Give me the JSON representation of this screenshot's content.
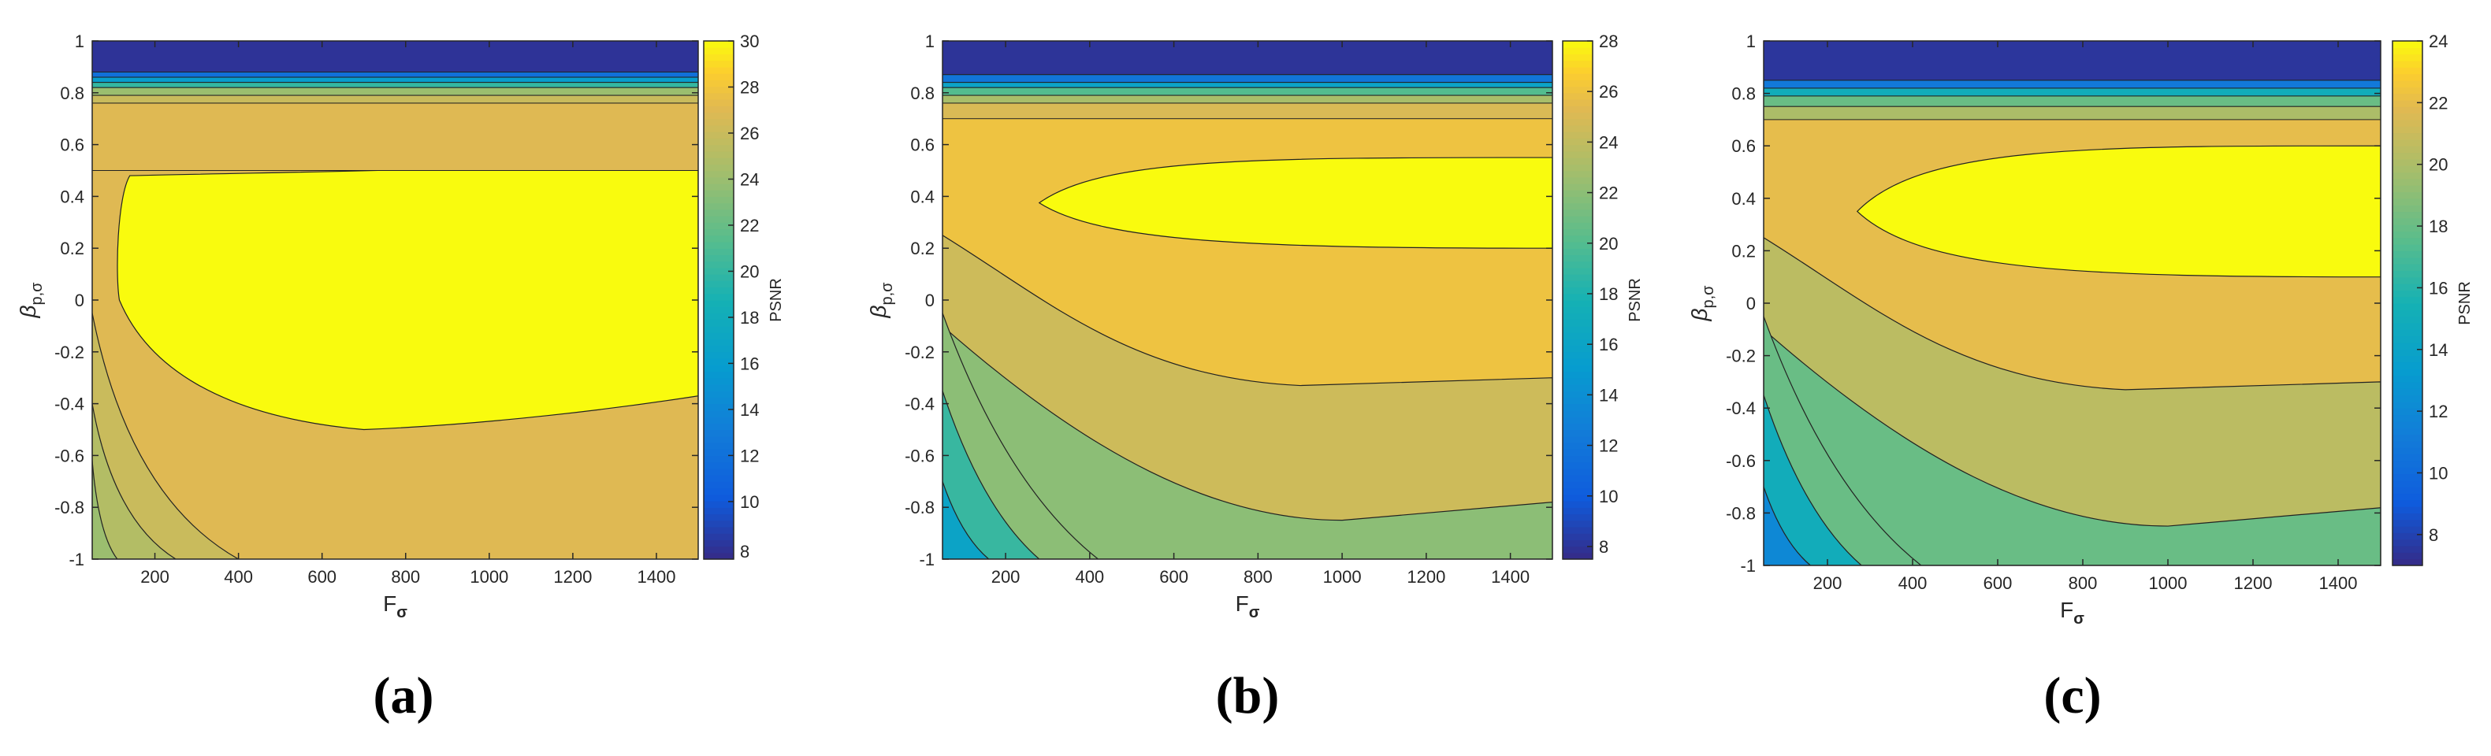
{
  "chart_data": [
    {
      "type": "heatmap",
      "subtype": "filled-contour",
      "panel_label": "(a)",
      "panel_letter": "a",
      "xlabel_main": "F",
      "xlabel_sub": "σ",
      "ylabel_main": "β",
      "ylabel_sub": "p,σ",
      "xlim": [
        50,
        1500
      ],
      "ylim": [
        -1,
        1
      ],
      "xticks": [
        200,
        400,
        600,
        800,
        1000,
        1200,
        1400
      ],
      "yticks": [
        -1,
        -0.8,
        -0.6,
        -0.4,
        -0.2,
        0,
        0.2,
        0.4,
        0.6,
        0.8,
        1
      ],
      "colorbar": {
        "label": "PSNR",
        "range": [
          7.5,
          30
        ],
        "ticks": [
          10,
          12,
          14,
          16,
          18,
          20,
          22,
          24,
          26,
          28,
          30
        ],
        "tick_labels": [
          "10",
          "12",
          "14",
          "16",
          "18",
          "20",
          "22",
          "24",
          "26",
          "28",
          "30"
        ],
        "bottom_label": "8",
        "colormap": "parula",
        "position": "right"
      },
      "peak_region": {
        "psnr": 30,
        "x_from": 110,
        "x_to": 1500,
        "y_from": -0.5,
        "y_to": 0.5
      },
      "bands_top": [
        {
          "psnr": 8,
          "y_from": 0.88,
          "y_to": 1.0
        },
        {
          "psnr": 12,
          "y_from": 0.86,
          "y_to": 0.88
        },
        {
          "psnr": 16,
          "y_from": 0.84,
          "y_to": 0.86
        },
        {
          "psnr": 20,
          "y_from": 0.82,
          "y_to": 0.84
        },
        {
          "psnr": 24,
          "y_from": 0.79,
          "y_to": 0.82
        },
        {
          "psnr": 26,
          "y_from": 0.76,
          "y_to": 0.79
        },
        {
          "psnr": 27,
          "y_from": 0.5,
          "y_to": 0.76
        }
      ],
      "bands_lower_left": [
        {
          "psnr": 24,
          "corner": "bottom-left",
          "extent_x": 110,
          "extent_y": -0.62
        },
        {
          "psnr": 25,
          "corner": "bottom-left",
          "extent_x": 250,
          "extent_y": -0.4
        },
        {
          "psnr": 26,
          "corner": "bottom-left",
          "extent_x": 400,
          "extent_y": -0.05
        }
      ],
      "background_psnr": 27,
      "contour_lines": [
        {
          "level": 29,
          "x": [
            140,
            120,
            110,
            115,
            160,
            250,
            400,
            700,
            1000,
            1300,
            1500
          ],
          "y": [
            0.48,
            0.45,
            0.25,
            0.0,
            -0.15,
            -0.3,
            -0.45,
            -0.5,
            -0.47,
            -0.42,
            -0.37
          ]
        },
        {
          "level": 29,
          "x": [
            140,
            400,
            700,
            1000,
            1300,
            1500
          ],
          "y": [
            0.48,
            0.49,
            0.5,
            0.5,
            0.52,
            0.56
          ]
        }
      ]
    },
    {
      "type": "heatmap",
      "subtype": "filled-contour",
      "panel_label": "(b)",
      "panel_letter": "b",
      "xlabel_main": "F",
      "xlabel_sub": "σ",
      "ylabel_main": "β",
      "ylabel_sub": "p,σ",
      "xlim": [
        50,
        1500
      ],
      "ylim": [
        -1,
        1
      ],
      "xticks": [
        200,
        400,
        600,
        800,
        1000,
        1200,
        1400
      ],
      "yticks": [
        -1,
        -0.8,
        -0.6,
        -0.4,
        -0.2,
        0,
        0.2,
        0.4,
        0.6,
        0.8,
        1
      ],
      "colorbar": {
        "label": "PSNR",
        "range": [
          7.5,
          28
        ],
        "ticks": [
          8,
          10,
          12,
          14,
          16,
          18,
          20,
          22,
          24,
          26,
          28
        ],
        "tick_labels": [
          "8",
          "10",
          "12",
          "14",
          "16",
          "18",
          "20",
          "22",
          "24",
          "26",
          "28"
        ],
        "colormap": "parula",
        "position": "right"
      },
      "peak_region": {
        "psnr": 28,
        "x_from": 280,
        "x_to": 1500,
        "y_from": 0.2,
        "y_to": 0.55
      },
      "bands_top": [
        {
          "psnr": 8,
          "y_from": 0.87,
          "y_to": 1.0
        },
        {
          "psnr": 12,
          "y_from": 0.84,
          "y_to": 0.87
        },
        {
          "psnr": 16,
          "y_from": 0.82,
          "y_to": 0.84
        },
        {
          "psnr": 20,
          "y_from": 0.79,
          "y_to": 0.82
        },
        {
          "psnr": 23,
          "y_from": 0.76,
          "y_to": 0.79
        },
        {
          "psnr": 25,
          "y_from": 0.7,
          "y_to": 0.76
        }
      ],
      "background_psnr": 26
    },
    {
      "type": "heatmap",
      "subtype": "filled-contour",
      "panel_label": "(c)",
      "panel_letter": "c",
      "xlabel_main": "F",
      "xlabel_sub": "σ",
      "ylabel_main": "β",
      "ylabel_sub": "p,σ",
      "xlim": [
        50,
        1500
      ],
      "ylim": [
        -1,
        1
      ],
      "xticks": [
        200,
        400,
        600,
        800,
        1000,
        1200,
        1400
      ],
      "yticks": [
        -1,
        -0.8,
        -0.6,
        -0.4,
        -0.2,
        0,
        0.2,
        0.4,
        0.6,
        0.8,
        1
      ],
      "colorbar": {
        "label": "PSNR",
        "range": [
          7,
          24
        ],
        "ticks": [
          8,
          10,
          12,
          14,
          16,
          18,
          20,
          22,
          24
        ],
        "tick_labels": [
          "8",
          "10",
          "12",
          "14",
          "16",
          "18",
          "20",
          "22",
          "24"
        ],
        "colormap": "parula",
        "position": "right"
      },
      "peak_region": {
        "psnr": 24,
        "x_from": 270,
        "x_to": 1500,
        "y_from": 0.1,
        "y_to": 0.6
      },
      "bands_top": [
        {
          "psnr": 7.5,
          "y_from": 0.85,
          "y_to": 1.0
        },
        {
          "psnr": 11,
          "y_from": 0.82,
          "y_to": 0.85
        },
        {
          "psnr": 15,
          "y_from": 0.79,
          "y_to": 0.82
        },
        {
          "psnr": 18,
          "y_from": 0.75,
          "y_to": 0.79
        },
        {
          "psnr": 20,
          "y_from": 0.7,
          "y_to": 0.75
        }
      ],
      "background_psnr": 22
    }
  ]
}
